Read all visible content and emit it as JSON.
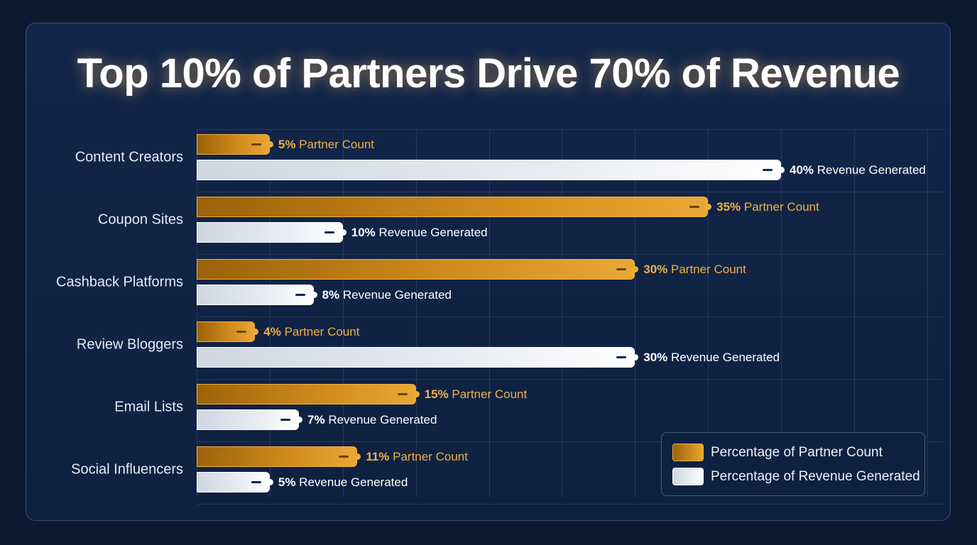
{
  "chart_data": {
    "type": "bar",
    "orientation": "horizontal",
    "title": "Top 10% of Partners Drive 70% of Revenue",
    "categories": [
      "Content Creators",
      "Coupon Sites",
      "Cashback Platforms",
      "Review Bloggers",
      "Email Lists",
      "Social Influencers"
    ],
    "series": [
      {
        "name": "Percentage of Partner Count",
        "label_suffix": "Partner Count",
        "color": "#e09a2a",
        "values": [
          5,
          35,
          30,
          4,
          15,
          11
        ]
      },
      {
        "name": "Percentage of Revenue Generated",
        "label_suffix": "Revenue Generated",
        "color": "#e8ecf2",
        "values": [
          40,
          10,
          8,
          30,
          7,
          5
        ]
      }
    ],
    "xlim": [
      0,
      50
    ],
    "grid": true,
    "legend_position": "bottom-right",
    "value_format": "percent"
  }
}
